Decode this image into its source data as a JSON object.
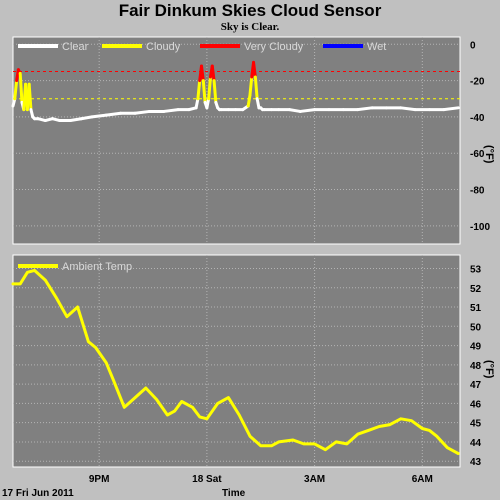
{
  "title": "Fair Dinkum Skies Cloud Sensor",
  "subtitle": "Sky is Clear.",
  "footer": {
    "date_label": "17 Fri Jun 2011",
    "xlabel": "Time"
  },
  "colors": {
    "background": "#c0c0c0",
    "plot": "#808080",
    "clear": "#ffffff",
    "cloudy": "#ffff00",
    "very_cloudy": "#ff0000",
    "wet": "#0000ff",
    "ambient": "#ffff00"
  },
  "chart_data": [
    {
      "type": "line",
      "legend_placement": "top",
      "ylabel": "(°F)",
      "ylim": [
        -110,
        4
      ],
      "yticks": [
        0,
        -20,
        -40,
        -60,
        -80,
        -100
      ],
      "grid": true,
      "x_range": [
        18.6,
        31.05
      ],
      "x_ticks": [
        {
          "x": 21,
          "label": "9PM"
        },
        {
          "x": 24,
          "label": "18 Sat"
        },
        {
          "x": 27,
          "label": "3AM"
        },
        {
          "x": 30,
          "label": "6AM"
        }
      ],
      "thresholds": [
        {
          "y": -15,
          "color": "#ff0000"
        },
        {
          "y": -30,
          "color": "#ffff00"
        }
      ],
      "series": [
        {
          "name": "Clear",
          "color": "#ffffff"
        },
        {
          "name": "Cloudy",
          "color": "#ffff00"
        },
        {
          "name": "Very Cloudy",
          "color": "#ff0000"
        },
        {
          "name": "Wet",
          "color": "#0000ff"
        }
      ],
      "sky_temp": {
        "x": [
          18.6,
          18.65,
          18.7,
          18.75,
          18.8,
          18.85,
          18.9,
          18.95,
          19.0,
          19.05,
          19.1,
          19.15,
          19.2,
          19.3,
          19.5,
          19.7,
          19.9,
          20.2,
          20.5,
          20.8,
          21.2,
          21.6,
          22.0,
          22.4,
          22.8,
          23.2,
          23.5,
          23.7,
          23.75,
          23.8,
          23.85,
          23.9,
          23.95,
          24.0,
          24.05,
          24.1,
          24.15,
          24.2,
          24.25,
          24.3,
          24.35,
          24.4,
          24.6,
          24.8,
          25.0,
          25.15,
          25.2,
          25.25,
          25.3,
          25.35,
          25.4,
          25.45,
          25.5,
          25.55,
          25.6,
          25.8,
          26.0,
          26.3,
          26.6,
          27.0,
          27.4,
          27.8,
          28.2,
          28.6,
          29.0,
          29.4,
          29.8,
          30.2,
          30.6,
          31.0
        ],
        "y": [
          -34,
          -30,
          -20,
          -14,
          -16,
          -32,
          -36,
          -22,
          -36,
          -22,
          -36,
          -40,
          -41,
          -41,
          -42,
          -41,
          -42,
          -42,
          -41,
          -40,
          -39,
          -38,
          -38,
          -37,
          -37,
          -36,
          -36,
          -35,
          -30,
          -20,
          -12,
          -20,
          -32,
          -35,
          -30,
          -18,
          -12,
          -20,
          -32,
          -35,
          -36,
          -36,
          -36,
          -36,
          -36,
          -34,
          -28,
          -18,
          -10,
          -18,
          -30,
          -35,
          -35,
          -36,
          -36,
          -36,
          -36,
          -36,
          -37,
          -36,
          -36,
          -36,
          -36,
          -35,
          -35,
          -35,
          -36,
          -36,
          -36,
          -35
        ]
      }
    },
    {
      "type": "line",
      "legend_placement": "top",
      "ylabel": "(°F)",
      "ylim": [
        42.7,
        53.7
      ],
      "yticks": [
        53,
        52,
        51,
        50,
        49,
        48,
        47,
        46,
        45,
        44,
        43
      ],
      "grid": true,
      "x_range": [
        18.6,
        31.05
      ],
      "x_ticks": [
        {
          "x": 21,
          "label": "9PM"
        },
        {
          "x": 24,
          "label": "18 Sat"
        },
        {
          "x": 27,
          "label": "3AM"
        },
        {
          "x": 30,
          "label": "6AM"
        }
      ],
      "series": [
        {
          "name": "Ambient Temp",
          "color": "#ffff00",
          "x": [
            18.6,
            18.8,
            19.0,
            19.2,
            19.5,
            19.8,
            20.1,
            20.4,
            20.7,
            20.9,
            21.2,
            21.4,
            21.7,
            22.0,
            22.3,
            22.6,
            22.9,
            23.1,
            23.3,
            23.6,
            23.8,
            24.0,
            24.3,
            24.6,
            24.9,
            25.2,
            25.5,
            25.8,
            26.0,
            26.4,
            26.7,
            27.0,
            27.3,
            27.6,
            27.9,
            28.2,
            28.5,
            28.8,
            29.1,
            29.4,
            29.7,
            30.0,
            30.2,
            30.4,
            30.7,
            30.9,
            31.0
          ],
          "y": [
            52.2,
            52.2,
            52.8,
            52.9,
            52.4,
            51.5,
            50.5,
            51.0,
            49.2,
            48.9,
            48.1,
            47.2,
            45.8,
            46.3,
            46.8,
            46.2,
            45.4,
            45.6,
            46.1,
            45.8,
            45.3,
            45.2,
            46.0,
            46.3,
            45.4,
            44.3,
            43.8,
            43.8,
            44.0,
            44.1,
            43.9,
            43.9,
            43.6,
            44.0,
            43.9,
            44.4,
            44.6,
            44.8,
            44.9,
            45.2,
            45.1,
            44.7,
            44.6,
            44.3,
            43.7,
            43.5,
            43.4
          ]
        }
      ]
    }
  ]
}
